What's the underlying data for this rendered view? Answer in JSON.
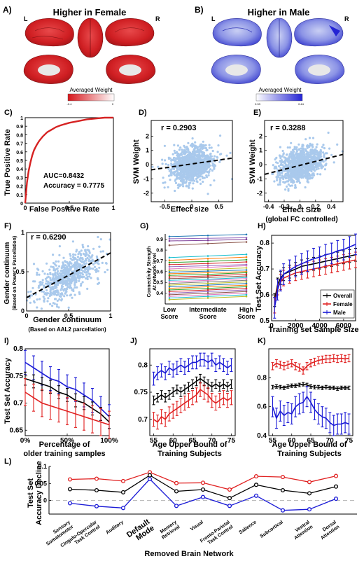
{
  "chart_data": [
    {
      "id": "A",
      "panel_label": "A)",
      "type": "heatmap",
      "title": "Higher in Female",
      "hemi_left": "L",
      "hemi_right": "R",
      "colorbar_label": "Averaged Weight",
      "colorbar_min": "-0.4",
      "colorbar_max": "0",
      "colors": {
        "low": "#d7161b",
        "high": "#ffffff"
      }
    },
    {
      "id": "B",
      "panel_label": "B)",
      "type": "heatmap",
      "title": "Higher in Male",
      "hemi_left": "L",
      "hemi_right": "R",
      "colorbar_label": "Averaged Weight",
      "colorbar_min": "0.33",
      "colorbar_max": "0.44",
      "colors": {
        "low": "#ffffff",
        "high": "#2424d4"
      }
    },
    {
      "id": "C",
      "panel_label": "C)",
      "type": "line",
      "xlabel": "False Positive Rate",
      "ylabel": "True Positive Rate",
      "xlim": [
        0,
        1
      ],
      "ylim": [
        0,
        1
      ],
      "xticks": [
        "0",
        "0.5",
        "1"
      ],
      "yticks": [
        "0",
        "0.1",
        "0.2",
        "0.3",
        "0.4",
        "0.5",
        "0.6",
        "0.7",
        "0.8",
        "0.9",
        "1"
      ],
      "annotations": [
        "AUC=0.8432",
        "Accuracy = 0.7775"
      ],
      "roc": [
        [
          0,
          0
        ],
        [
          0.01,
          0.12
        ],
        [
          0.02,
          0.24
        ],
        [
          0.04,
          0.38
        ],
        [
          0.06,
          0.48
        ],
        [
          0.08,
          0.56
        ],
        [
          0.1,
          0.62
        ],
        [
          0.13,
          0.68
        ],
        [
          0.16,
          0.73
        ],
        [
          0.2,
          0.78
        ],
        [
          0.25,
          0.83
        ],
        [
          0.3,
          0.86
        ],
        [
          0.35,
          0.89
        ],
        [
          0.4,
          0.91
        ],
        [
          0.5,
          0.94
        ],
        [
          0.6,
          0.96
        ],
        [
          0.7,
          0.98
        ],
        [
          0.8,
          0.99
        ],
        [
          0.9,
          1.0
        ],
        [
          1.0,
          1.0
        ]
      ],
      "color": "#d62222"
    },
    {
      "id": "D",
      "panel_label": "D)",
      "type": "scatter",
      "xlabel": "Effect size",
      "ylabel": "SVM Weight",
      "xlim": [
        -0.75,
        0.75
      ],
      "ylim": [
        -2.6,
        3.1
      ],
      "xticks": [
        -0.5,
        0,
        0.5
      ],
      "yticks": [
        -2,
        -1,
        0,
        1,
        2
      ],
      "annotation": "r = 0.2903",
      "fit": {
        "slope": 0.55,
        "intercept": 0.05
      },
      "cloud": {
        "n": 1100,
        "x_mean": 0,
        "x_sd": 0.2,
        "slope": 0.55,
        "resid_sd": 0.58,
        "seed": 11
      },
      "point_color": "#a9c9ec",
      "line_color": "#000000"
    },
    {
      "id": "E",
      "panel_label": "E)",
      "type": "scatter",
      "xlabel": "Effect Size",
      "xlabel2": "(global FC controlled)",
      "ylabel": "SVM Weight",
      "xlim": [
        -0.45,
        0.55
      ],
      "ylim": [
        -2.6,
        3.1
      ],
      "xticks": [
        -0.4,
        -0.2,
        0,
        0.2,
        0.4
      ],
      "yticks": [
        -2,
        -1,
        0,
        1,
        2
      ],
      "annotation": "r = 0.3288",
      "fit": {
        "slope": 1.4,
        "intercept": -0.05
      },
      "cloud": {
        "n": 1100,
        "x_mean": 0,
        "x_sd": 0.14,
        "slope": 1.4,
        "resid_sd": 0.58,
        "seed": 23
      },
      "point_color": "#a9c9ec",
      "line_color": "#000000"
    },
    {
      "id": "F",
      "panel_label": "F)",
      "type": "scatter",
      "xlabel": "Gender continuum",
      "xlabel2": "(Based on AAL2 parcellation)",
      "ylabel": "Gender continuum",
      "ylabel2": "(Based on Power's Parcellation)",
      "xlim": [
        0,
        1
      ],
      "ylim": [
        0,
        1
      ],
      "xticks": [
        0,
        0.5,
        1
      ],
      "yticks": [
        0,
        0.5,
        1
      ],
      "annotation": "r = 0.6290",
      "fit": {
        "slope": 0.57,
        "intercept": 0.17
      },
      "cloud": {
        "n": 650,
        "x_mean": 0.5,
        "x_sd": 0.2,
        "slope": 0.57,
        "intercept": 0.17,
        "resid_sd": 0.13,
        "seed": 7
      },
      "point_color": "#a9c9ec",
      "line_color": "#000000"
    },
    {
      "id": "G",
      "panel_label": "G)",
      "type": "line",
      "ylabel": "Connectivity Strength",
      "ylabel2": "At network level",
      "categories": [
        [
          "Low",
          "Score"
        ],
        [
          "Intermediate",
          "Score"
        ],
        [
          "High",
          "Score"
        ]
      ],
      "ylim": [
        0.3,
        0.95
      ],
      "yticks": [
        0.4,
        0.5,
        0.6,
        0.7,
        0.8,
        0.9
      ],
      "lines": [
        {
          "v": [
            0.925,
            0.935,
            0.945
          ],
          "c": "#1f77b4"
        },
        {
          "v": [
            0.905,
            0.91,
            0.915
          ],
          "c": "#9467bd"
        },
        {
          "v": [
            0.885,
            0.89,
            0.9
          ],
          "c": "#7f3f98"
        },
        {
          "v": [
            0.845,
            0.86,
            0.875
          ],
          "c": "#8c564b"
        },
        {
          "v": [
            0.73,
            0.745,
            0.76
          ],
          "c": "#17becf"
        },
        {
          "v": [
            0.705,
            0.72,
            0.735
          ],
          "c": "#ff7f0e"
        },
        {
          "v": [
            0.685,
            0.695,
            0.71
          ],
          "c": "#2ca02c"
        },
        {
          "v": [
            0.665,
            0.675,
            0.69
          ],
          "c": "#d62728"
        },
        {
          "v": [
            0.645,
            0.655,
            0.665
          ],
          "c": "#9467bd"
        },
        {
          "v": [
            0.625,
            0.64,
            0.655
          ],
          "c": "#e377c2"
        },
        {
          "v": [
            0.61,
            0.62,
            0.635
          ],
          "c": "#bcbd22"
        },
        {
          "v": [
            0.595,
            0.605,
            0.615
          ],
          "c": "#1f77b4"
        },
        {
          "v": [
            0.58,
            0.59,
            0.6
          ],
          "c": "#ff7f0e"
        },
        {
          "v": [
            0.565,
            0.575,
            0.59
          ],
          "c": "#2ca02c"
        },
        {
          "v": [
            0.55,
            0.56,
            0.575
          ],
          "c": "#d62728"
        },
        {
          "v": [
            0.535,
            0.545,
            0.56
          ],
          "c": "#8c564b"
        },
        {
          "v": [
            0.52,
            0.53,
            0.545
          ],
          "c": "#17becf"
        },
        {
          "v": [
            0.505,
            0.52,
            0.535
          ],
          "c": "#e377c2"
        },
        {
          "v": [
            0.49,
            0.505,
            0.52
          ],
          "c": "#7f7f7f"
        },
        {
          "v": [
            0.475,
            0.49,
            0.505
          ],
          "c": "#bcbd22"
        },
        {
          "v": [
            0.46,
            0.475,
            0.49
          ],
          "c": "#1f77b4"
        },
        {
          "v": [
            0.445,
            0.46,
            0.475
          ],
          "c": "#ff7f0e"
        },
        {
          "v": [
            0.43,
            0.445,
            0.46
          ],
          "c": "#2ca02c"
        },
        {
          "v": [
            0.415,
            0.43,
            0.445
          ],
          "c": "#d62728"
        },
        {
          "v": [
            0.4,
            0.415,
            0.43
          ],
          "c": "#9467bd"
        },
        {
          "v": [
            0.385,
            0.4,
            0.415
          ],
          "c": "#8c564b"
        },
        {
          "v": [
            0.37,
            0.385,
            0.4
          ],
          "c": "#e377c2"
        },
        {
          "v": [
            0.355,
            0.37,
            0.385
          ],
          "c": "#17becf"
        },
        {
          "v": [
            0.34,
            0.355,
            0.37
          ],
          "c": "#bcbd22"
        }
      ]
    },
    {
      "id": "H",
      "panel_label": "H)",
      "type": "line",
      "xlabel": "Training set Sample Size",
      "ylabel": "Test Set Accuracy",
      "xlim": [
        0,
        7000
      ],
      "ylim": [
        0.5,
        0.83
      ],
      "xticks": [
        0,
        2000,
        4000,
        6000
      ],
      "yticks": [
        0.5,
        0.6,
        0.7,
        0.8
      ],
      "legend": [
        "Overall",
        "Female",
        "Male"
      ],
      "x": [
        250,
        500,
        750,
        1000,
        1500,
        2000,
        2500,
        3000,
        3500,
        4000,
        4500,
        5000,
        5500,
        6000,
        6500,
        7000
      ],
      "series": [
        {
          "name": "Overall",
          "color": "#000000",
          "values": [
            0.58,
            0.64,
            0.665,
            0.68,
            0.69,
            0.7,
            0.71,
            0.715,
            0.72,
            0.725,
            0.73,
            0.735,
            0.74,
            0.745,
            0.75,
            0.755
          ],
          "err": 0.025
        },
        {
          "name": "Female",
          "color": "#e02020",
          "values": [
            0.56,
            0.63,
            0.65,
            0.665,
            0.675,
            0.685,
            0.69,
            0.695,
            0.7,
            0.705,
            0.71,
            0.715,
            0.72,
            0.725,
            0.73,
            0.735
          ],
          "err": 0.03
        },
        {
          "name": "Male",
          "color": "#1a1ad6",
          "values": [
            0.55,
            0.62,
            0.655,
            0.68,
            0.695,
            0.71,
            0.72,
            0.73,
            0.74,
            0.745,
            0.755,
            0.76,
            0.77,
            0.775,
            0.785,
            0.795
          ],
          "err": 0.04
        }
      ]
    },
    {
      "id": "I",
      "panel_label": "I)",
      "type": "line",
      "xlabel": "Percentage of",
      "xlabel2": "older training samples",
      "ylabel": "Test Set Accuracy",
      "xlim": [
        0,
        100
      ],
      "ylim": [
        0.64,
        0.8
      ],
      "xticks": [
        "0%",
        "50%",
        "100%"
      ],
      "xtick_values": [
        0,
        50,
        100
      ],
      "yticks": [
        0.65,
        0.7,
        0.75,
        0.8
      ],
      "x": [
        0,
        10,
        20,
        30,
        40,
        50,
        60,
        70,
        80,
        90,
        100
      ],
      "series": [
        {
          "name": "Male",
          "color": "#1a1ad6",
          "values": [
            0.775,
            0.765,
            0.755,
            0.745,
            0.74,
            0.73,
            0.725,
            0.715,
            0.705,
            0.69,
            0.675
          ],
          "err": 0.022
        },
        {
          "name": "Overall",
          "color": "#000000",
          "values": [
            0.745,
            0.74,
            0.735,
            0.73,
            0.72,
            0.715,
            0.705,
            0.7,
            0.69,
            0.68,
            0.665
          ],
          "err": 0.012
        },
        {
          "name": "Female",
          "color": "#e02020",
          "values": [
            0.72,
            0.71,
            0.7,
            0.695,
            0.69,
            0.685,
            0.68,
            0.675,
            0.67,
            0.665,
            0.66
          ],
          "err": 0.025
        }
      ]
    },
    {
      "id": "J",
      "panel_label": "J)",
      "type": "line",
      "xlabel": "Age Upper Bound of",
      "xlabel2": "Training Subjects",
      "xlim": [
        54,
        76
      ],
      "ylim": [
        0.67,
        0.83
      ],
      "xticks": [
        55,
        60,
        65,
        70,
        75
      ],
      "yticks": [
        0.7,
        0.75,
        0.8
      ],
      "x": [
        55,
        56,
        57,
        58,
        59,
        60,
        61,
        62,
        63,
        64,
        65,
        66,
        67,
        68,
        69,
        70,
        71,
        72,
        73,
        74,
        75
      ],
      "series": [
        {
          "name": "Male",
          "color": "#1a1ad6",
          "values": [
            0.775,
            0.785,
            0.79,
            0.785,
            0.795,
            0.79,
            0.795,
            0.8,
            0.795,
            0.8,
            0.805,
            0.805,
            0.81,
            0.81,
            0.805,
            0.81,
            0.8,
            0.805,
            0.8,
            0.795,
            0.8
          ],
          "err": 0.012
        },
        {
          "name": "Overall",
          "color": "#000000",
          "values": [
            0.735,
            0.74,
            0.745,
            0.74,
            0.745,
            0.75,
            0.755,
            0.75,
            0.755,
            0.76,
            0.765,
            0.77,
            0.775,
            0.77,
            0.765,
            0.76,
            0.765,
            0.76,
            0.765,
            0.76,
            0.765
          ],
          "err": 0.008
        },
        {
          "name": "Female",
          "color": "#e02020",
          "values": [
            0.7,
            0.695,
            0.705,
            0.7,
            0.71,
            0.715,
            0.72,
            0.725,
            0.73,
            0.735,
            0.74,
            0.745,
            0.755,
            0.75,
            0.745,
            0.735,
            0.73,
            0.735,
            0.74,
            0.735,
            0.74
          ],
          "err": 0.013
        }
      ]
    },
    {
      "id": "K",
      "panel_label": "K)",
      "type": "line",
      "xlabel": "Age Upper Bound of",
      "xlabel2": "Training Subjects",
      "xlim": [
        54,
        76
      ],
      "ylim": [
        0.4,
        1.0
      ],
      "xticks": [
        55,
        60,
        65,
        70,
        75
      ],
      "yticks": [
        0.4,
        0.6,
        0.8
      ],
      "x": [
        55,
        56,
        57,
        58,
        59,
        60,
        61,
        62,
        63,
        64,
        65,
        66,
        67,
        68,
        69,
        70,
        71,
        72,
        73,
        74,
        75
      ],
      "series": [
        {
          "name": "Female",
          "color": "#e02020",
          "values": [
            0.88,
            0.9,
            0.89,
            0.88,
            0.89,
            0.9,
            0.88,
            0.87,
            0.85,
            0.88,
            0.9,
            0.91,
            0.92,
            0.925,
            0.93,
            0.93,
            0.935,
            0.93,
            0.935,
            0.93,
            0.935
          ],
          "err": 0.025
        },
        {
          "name": "Overall",
          "color": "#000000",
          "values": [
            0.735,
            0.74,
            0.735,
            0.73,
            0.74,
            0.745,
            0.745,
            0.75,
            0.755,
            0.75,
            0.74,
            0.735,
            0.735,
            0.73,
            0.735,
            0.73,
            0.73,
            0.725,
            0.73,
            0.73,
            0.73
          ],
          "err": 0.012
        },
        {
          "name": "Male",
          "color": "#1a1ad6",
          "values": [
            0.6,
            0.52,
            0.57,
            0.54,
            0.56,
            0.55,
            0.6,
            0.62,
            0.63,
            0.67,
            0.63,
            0.58,
            0.55,
            0.53,
            0.52,
            0.49,
            0.47,
            0.48,
            0.48,
            0.49,
            0.48
          ],
          "err": 0.07
        }
      ]
    },
    {
      "id": "L",
      "panel_label": "L)",
      "type": "line",
      "xlabel": "Removed Brain Network",
      "ylabel": "Test Set",
      "ylabel2": "Accuracy Decline",
      "ylim": [
        -0.04,
        0.1
      ],
      "yticks": [
        0,
        0.05,
        0.1
      ],
      "categories": [
        [
          "Sensory",
          "Somatomotor"
        ],
        [
          "Cingulo-Opercular",
          "Task Control"
        ],
        [
          "Auditory"
        ],
        [
          "Default",
          "Mode"
        ],
        [
          "Memory",
          "Retrieval"
        ],
        [
          "Visual"
        ],
        [
          "Fronto-Parietal",
          "Task Control"
        ],
        [
          "Salience"
        ],
        [
          "Subcortical"
        ],
        [
          "Ventral",
          "Attention"
        ],
        [
          "Dorsal",
          "Attention"
        ]
      ],
      "bold_category": 3,
      "series": [
        {
          "name": "Female",
          "color": "#e02020",
          "values": [
            0.062,
            0.064,
            0.057,
            0.083,
            0.051,
            0.052,
            0.032,
            0.071,
            0.069,
            0.054,
            0.072
          ]
        },
        {
          "name": "Overall",
          "color": "#000000",
          "values": [
            0.033,
            0.03,
            0.024,
            0.074,
            0.027,
            0.032,
            0.007,
            0.046,
            0.03,
            0.021,
            0.041
          ]
        },
        {
          "name": "Male",
          "color": "#1a1ad6",
          "values": [
            -0.008,
            -0.017,
            -0.022,
            0.063,
            -0.016,
            0.01,
            -0.016,
            0.014,
            -0.029,
            -0.026,
            0.005
          ]
        }
      ],
      "zero_line_color": "#bdbdbd"
    }
  ]
}
